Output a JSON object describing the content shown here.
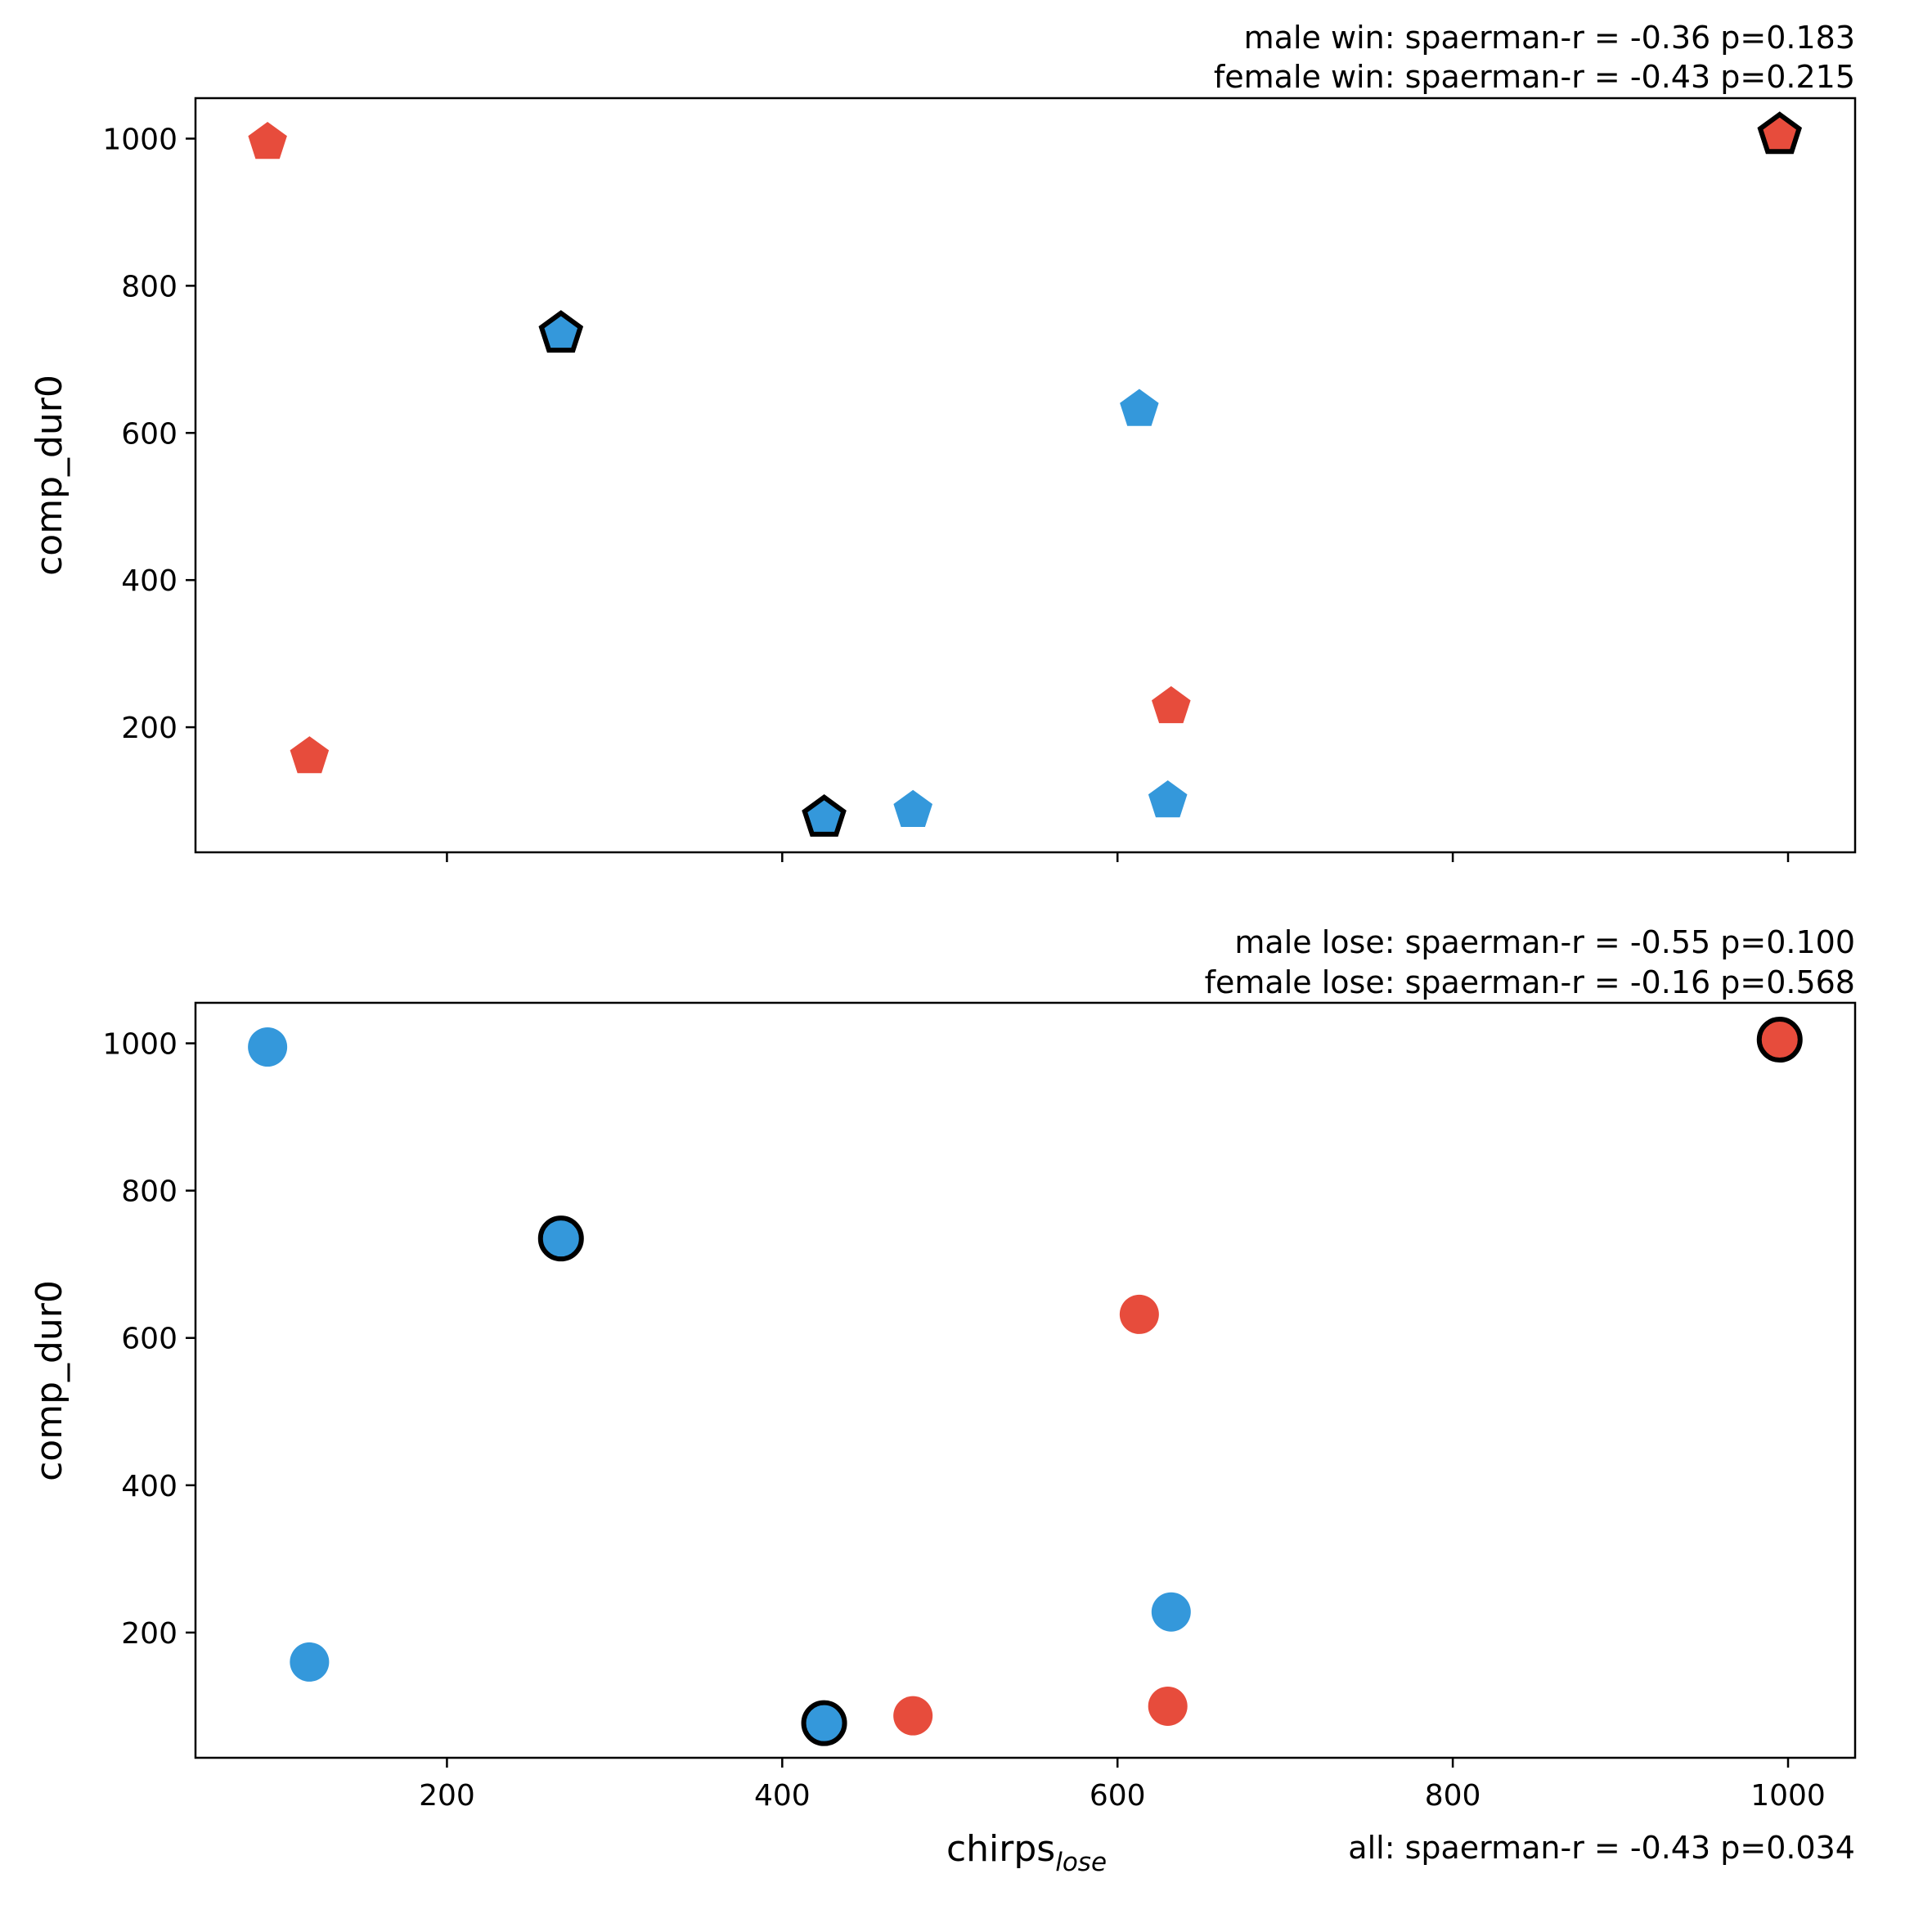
{
  "chart_data": [
    {
      "type": "scatter",
      "panel": "top",
      "marker": "pentagon",
      "annotations": [
        "male win: spaerman-r = -0.36 p=0.183",
        "female win: spaerman-r = -0.43 p=0.215"
      ],
      "ylabel": "comp_dur0",
      "xlabel": "",
      "xlim": [
        50,
        1040
      ],
      "ylim": [
        30,
        1055
      ],
      "xticks": [
        200,
        400,
        600,
        800,
        1000
      ],
      "yticks": [
        200,
        400,
        600,
        800,
        1000
      ],
      "show_xtick_labels": false,
      "colors": {
        "male": "#3498db",
        "female": "#e74c3c",
        "highlight_edge": "#000000"
      },
      "points": [
        {
          "x": 93,
          "y": 995,
          "group": "female",
          "highlight": false
        },
        {
          "x": 118,
          "y": 160,
          "group": "female",
          "highlight": false
        },
        {
          "x": 632,
          "y": 228,
          "group": "female",
          "highlight": false
        },
        {
          "x": 995,
          "y": 1005,
          "group": "female",
          "highlight": true
        },
        {
          "x": 268,
          "y": 735,
          "group": "male",
          "highlight": true
        },
        {
          "x": 425,
          "y": 77,
          "group": "male",
          "highlight": true
        },
        {
          "x": 478,
          "y": 87,
          "group": "male",
          "highlight": false
        },
        {
          "x": 613,
          "y": 632,
          "group": "male",
          "highlight": false
        },
        {
          "x": 630,
          "y": 100,
          "group": "male",
          "highlight": false
        }
      ]
    },
    {
      "type": "scatter",
      "panel": "bottom",
      "marker": "circle",
      "annotations": [
        "male lose: spaerman-r = -0.55 p=0.100",
        "female lose: spaerman-r = -0.16 p=0.568"
      ],
      "ylabel": "comp_dur0",
      "xlabel_main": "chirps",
      "xlabel_sub": "lose",
      "footer": "all: spaerman-r = -0.43 p=0.034",
      "xlim": [
        50,
        1040
      ],
      "ylim": [
        30,
        1055
      ],
      "xticks": [
        200,
        400,
        600,
        800,
        1000
      ],
      "yticks": [
        200,
        400,
        600,
        800,
        1000
      ],
      "show_xtick_labels": true,
      "colors": {
        "male": "#3498db",
        "female": "#e74c3c",
        "highlight_edge": "#000000"
      },
      "points": [
        {
          "x": 93,
          "y": 995,
          "group": "male",
          "highlight": false
        },
        {
          "x": 118,
          "y": 160,
          "group": "male",
          "highlight": false
        },
        {
          "x": 632,
          "y": 228,
          "group": "male",
          "highlight": false
        },
        {
          "x": 268,
          "y": 735,
          "group": "male",
          "highlight": true
        },
        {
          "x": 425,
          "y": 77,
          "group": "male",
          "highlight": true
        },
        {
          "x": 995,
          "y": 1005,
          "group": "female",
          "highlight": true
        },
        {
          "x": 478,
          "y": 87,
          "group": "female",
          "highlight": false
        },
        {
          "x": 613,
          "y": 632,
          "group": "female",
          "highlight": false
        },
        {
          "x": 630,
          "y": 100,
          "group": "female",
          "highlight": false
        }
      ]
    }
  ]
}
